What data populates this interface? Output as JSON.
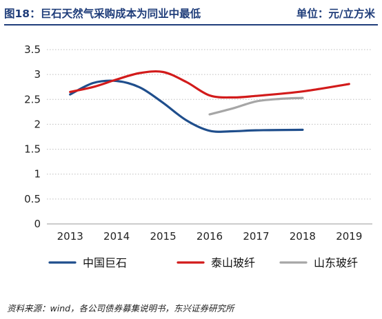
{
  "header": {
    "title": "图18：巨石天然气采购成本为同业中最低",
    "unit": "单位：元/立方米"
  },
  "source": "资料来源：wind，各公司债券募集说明书，东兴证券研究所",
  "chart_data": {
    "type": "line",
    "x": [
      2013,
      2014,
      2015,
      2016,
      2017,
      2018,
      2019
    ],
    "ylim": [
      0,
      3.5
    ],
    "yticks": [
      0,
      0.5,
      1,
      1.5,
      2,
      2.5,
      3,
      3.5
    ],
    "ytick_labels": [
      "0",
      "0.5",
      "1",
      "1.5",
      "2",
      "2.5",
      "3",
      "3.5"
    ],
    "grid": true,
    "legend_position": "bottom",
    "series": [
      {
        "name": "中国巨石",
        "color": "#1f4e8c",
        "points": [
          [
            2013,
            2.6
          ],
          [
            2013.5,
            2.83
          ],
          [
            2014,
            2.87
          ],
          [
            2014.5,
            2.74
          ],
          [
            2015,
            2.43
          ],
          [
            2015.5,
            2.08
          ],
          [
            2016,
            1.87
          ],
          [
            2016.5,
            1.86
          ],
          [
            2017,
            1.88
          ],
          [
            2018,
            1.89
          ]
        ]
      },
      {
        "name": "泰山玻纤",
        "color": "#d21b1b",
        "points": [
          [
            2013,
            2.65
          ],
          [
            2013.5,
            2.75
          ],
          [
            2014,
            2.9
          ],
          [
            2014.5,
            3.03
          ],
          [
            2015,
            3.05
          ],
          [
            2015.5,
            2.85
          ],
          [
            2016,
            2.58
          ],
          [
            2016.5,
            2.54
          ],
          [
            2017,
            2.57
          ],
          [
            2018,
            2.66
          ],
          [
            2019,
            2.81
          ]
        ]
      },
      {
        "name": "山东玻纤",
        "color": "#a6a6a6",
        "points": [
          [
            2016,
            2.2
          ],
          [
            2016.5,
            2.32
          ],
          [
            2017,
            2.46
          ],
          [
            2017.5,
            2.51
          ],
          [
            2018,
            2.53
          ]
        ]
      }
    ]
  }
}
